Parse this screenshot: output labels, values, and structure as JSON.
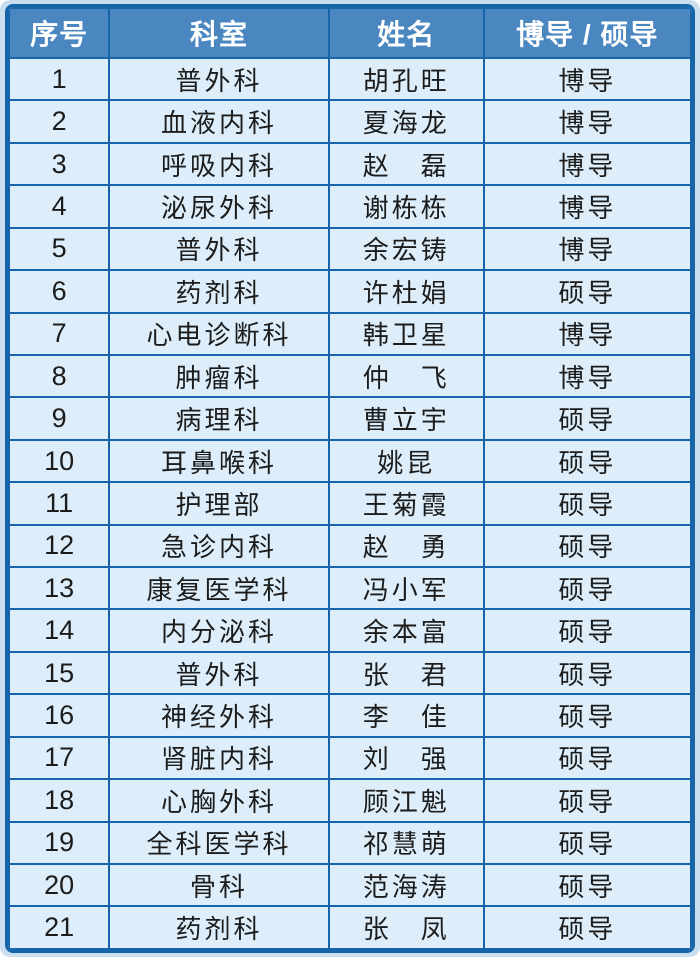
{
  "colors": {
    "page_bg": "#c9dff0",
    "border": "#1565a8",
    "header_bg": "#4a86c0",
    "header_text": "#ffffff",
    "cell_bg": "#ddeefa",
    "body_text": "#1c1c1c"
  },
  "table": {
    "columns": [
      "序号",
      "科室",
      "姓名",
      "博导 / 硕导"
    ],
    "rows": [
      {
        "no": "1",
        "department": "普外科",
        "name": "胡孔旺",
        "type": "博导"
      },
      {
        "no": "2",
        "department": "血液内科",
        "name": "夏海龙",
        "type": "博导"
      },
      {
        "no": "3",
        "department": "呼吸内科",
        "name": "赵　磊",
        "type": "博导"
      },
      {
        "no": "4",
        "department": "泌尿外科",
        "name": "谢栋栋",
        "type": "博导"
      },
      {
        "no": "5",
        "department": "普外科",
        "name": "余宏铸",
        "type": "博导"
      },
      {
        "no": "6",
        "department": "药剂科",
        "name": "许杜娟",
        "type": "硕导"
      },
      {
        "no": "7",
        "department": "心电诊断科",
        "name": "韩卫星",
        "type": "博导"
      },
      {
        "no": "8",
        "department": "肿瘤科",
        "name": "仲　飞",
        "type": "博导"
      },
      {
        "no": "9",
        "department": "病理科",
        "name": "曹立宇",
        "type": "硕导"
      },
      {
        "no": "10",
        "department": "耳鼻喉科",
        "name": "姚昆",
        "type": "硕导"
      },
      {
        "no": "11",
        "department": "护理部",
        "name": "王菊霞",
        "type": "硕导"
      },
      {
        "no": "12",
        "department": "急诊内科",
        "name": "赵　勇",
        "type": "硕导"
      },
      {
        "no": "13",
        "department": "康复医学科",
        "name": "冯小军",
        "type": "硕导"
      },
      {
        "no": "14",
        "department": "内分泌科",
        "name": "余本富",
        "type": "硕导"
      },
      {
        "no": "15",
        "department": "普外科",
        "name": "张　君",
        "type": "硕导"
      },
      {
        "no": "16",
        "department": "神经外科",
        "name": "李　佳",
        "type": "硕导"
      },
      {
        "no": "17",
        "department": "肾脏内科",
        "name": "刘　强",
        "type": "硕导"
      },
      {
        "no": "18",
        "department": "心胸外科",
        "name": "顾江魁",
        "type": "硕导"
      },
      {
        "no": "19",
        "department": "全科医学科",
        "name": "祁慧萌",
        "type": "硕导"
      },
      {
        "no": "20",
        "department": "骨科",
        "name": "范海涛",
        "type": "硕导"
      },
      {
        "no": "21",
        "department": "药剂科",
        "name": "张　凤",
        "type": "硕导"
      }
    ]
  }
}
